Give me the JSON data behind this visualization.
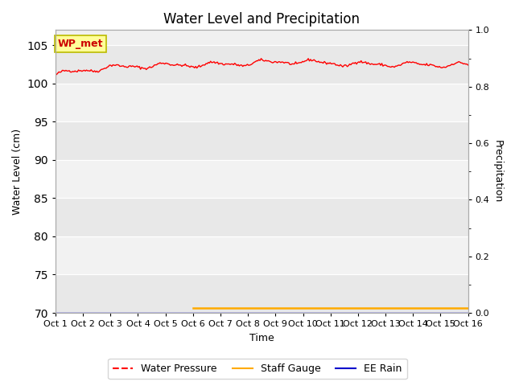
{
  "title": "Water Level and Precipitation",
  "xlabel": "Time",
  "ylabel_left": "Water Level (cm)",
  "ylabel_right": "Precipitation",
  "annotation_text": "WP_met",
  "annotation_color": "#cc0000",
  "annotation_box_color": "#ffff99",
  "annotation_box_edge": "#bbbb00",
  "x_tick_labels": [
    "Oct 1",
    "Oct 2",
    "Oct 3",
    "Oct 4",
    "Oct 5",
    "Oct 6",
    "Oct 7",
    "Oct 8",
    "Oct 9",
    "Oct 10",
    "Oct 11",
    "Oct 12",
    "Oct 13",
    "Oct 14",
    "Oct 15",
    "Oct 16"
  ],
  "ylim_left": [
    70,
    107
  ],
  "ylim_right": [
    0.0,
    1.0
  ],
  "yticks_left": [
    70,
    75,
    80,
    85,
    90,
    95,
    100,
    105
  ],
  "yticks_right": [
    0.0,
    0.2,
    0.4,
    0.6,
    0.8,
    1.0
  ],
  "bg_color": "#f0f0f0",
  "stripe_color": "#e0e0e0",
  "water_pressure_color": "#ff0000",
  "staff_gauge_color": "#ffaa00",
  "ee_rain_color": "#0000cc",
  "legend_labels": [
    "Water Pressure",
    "Staff Gauge",
    "EE Rain"
  ],
  "title_fontsize": 12,
  "axis_label_fontsize": 9,
  "tick_fontsize": 8
}
